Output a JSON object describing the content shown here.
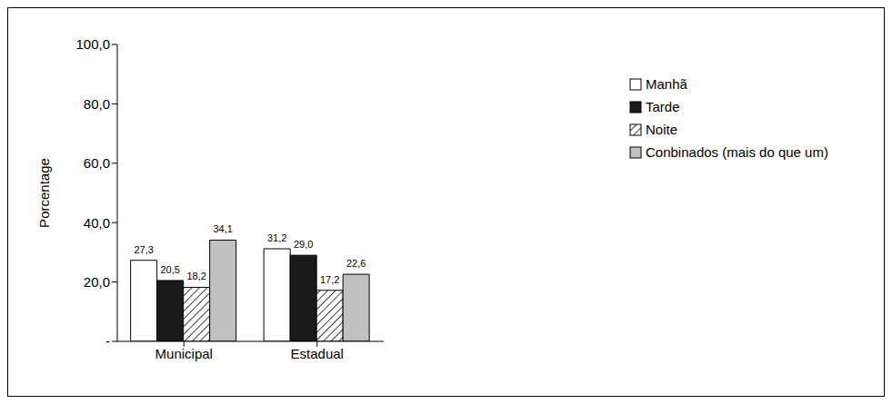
{
  "chart_data": {
    "type": "bar",
    "y_label": "Porcentage",
    "categories": [
      "Municipal",
      "Estadual"
    ],
    "series": [
      {
        "name": "Manhã",
        "color": "#ffffff",
        "values": [
          27.3,
          31.2
        ],
        "value_labels": [
          "27,3",
          "31,2"
        ]
      },
      {
        "name": "Tarde",
        "color": "#1a1a1a",
        "values": [
          20.5,
          29.0
        ],
        "value_labels": [
          "20,5",
          "29,0"
        ]
      },
      {
        "name": "Noite",
        "color": "#404040",
        "values": [
          18.2,
          17.2
        ],
        "value_labels": [
          "18,2",
          "17,2"
        ]
      },
      {
        "name": "Conbinados (mais do que um)",
        "color": "#c0c0c0",
        "values": [
          34.1,
          22.6
        ],
        "value_labels": [
          "34,1",
          "22,6"
        ]
      }
    ],
    "ylim": [
      0,
      100
    ],
    "yticks": [
      {
        "value": 0,
        "label": "-"
      },
      {
        "value": 20,
        "label": "20,0"
      },
      {
        "value": 40,
        "label": "40,0"
      },
      {
        "value": 60,
        "label": "60,0"
      },
      {
        "value": 80,
        "label": "80,0"
      },
      {
        "value": 100,
        "label": "100,0"
      }
    ],
    "grid": false,
    "legend": "right",
    "data_labels": true
  }
}
